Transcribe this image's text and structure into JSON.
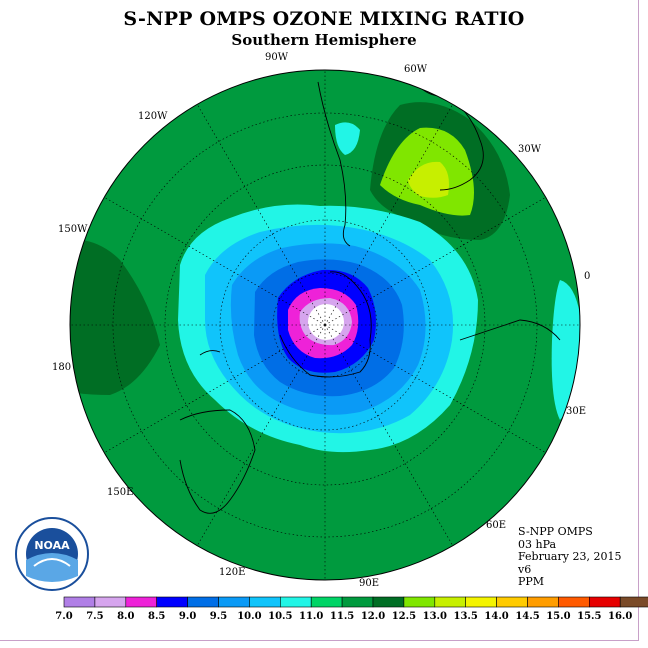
{
  "title": "S-NPP OMPS OZONE MIXING RATIO",
  "subtitle": "Southern Hemisphere",
  "longitude_labels": [
    "90W",
    "60W",
    "120W",
    "30W",
    "150W",
    "0",
    "180",
    "30E",
    "150E",
    "60E",
    "120E",
    "90E"
  ],
  "info": {
    "instrument": "S-NPP OMPS",
    "pressure": "03 hPa",
    "date": "February 23, 2015",
    "version": "v6",
    "units": "PPM"
  },
  "logo_text": "NOAA",
  "colorbar": {
    "ticks": [
      "7.0",
      "7.5",
      "8.0",
      "8.5",
      "9.0",
      "9.5",
      "10.0",
      "10.5",
      "11.0",
      "11.5",
      "12.0",
      "12.5",
      "13.0",
      "13.5",
      "14.0",
      "14.5",
      "15.0",
      "15.5",
      "16.0"
    ],
    "colors": [
      "#b07fe6",
      "#d6a5ee",
      "#ee22d8",
      "#0000ff",
      "#006ee6",
      "#0a9af6",
      "#10c4fb",
      "#22f5e6",
      "#00d466",
      "#009a3e",
      "#006e24",
      "#80e600",
      "#c7ef00",
      "#f4f400",
      "#ffcb00",
      "#ff9d00",
      "#ff5a00",
      "#e60000",
      "#7a4a28"
    ]
  },
  "colors": {
    "background_ppm_11_5": "#009a3e",
    "ppm_12_0": "#006e24",
    "ppm_12_5": "#80e600",
    "ppm_13_0": "#c7ef00",
    "ppm_11_0": "#22f5e6",
    "ppm_10_5": "#10c4fb",
    "ppm_10_0": "#0a9af6",
    "ppm_9_5": "#006ee6",
    "ppm_9_0": "#0000ff",
    "ppm_8_5": "#ee22d8",
    "ppm_8_0": "#d6a5ee"
  }
}
